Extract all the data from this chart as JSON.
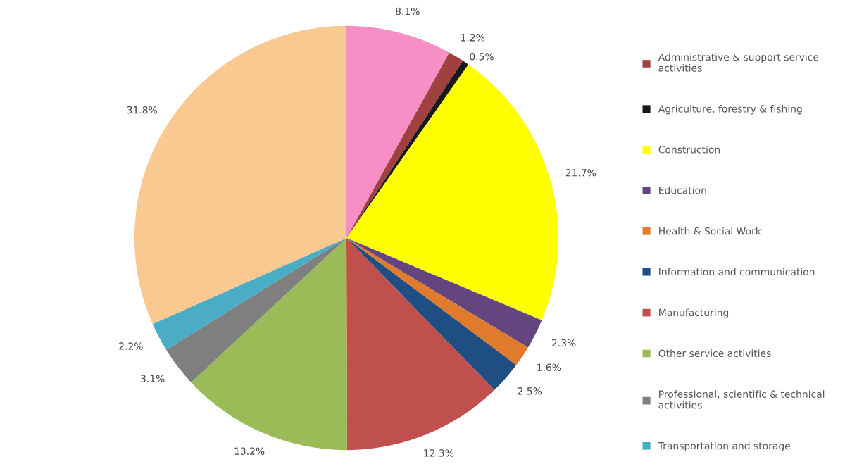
{
  "chart_data": {
    "type": "pie",
    "categories": [
      null,
      "Administrative & support service activities",
      "Agriculture, forestry & fishing",
      "Construction",
      "Education",
      "Health & Social Work",
      "Information and communication",
      "Manufacturing",
      "Other service activities",
      "Professional, scientific & technical activities",
      "Transportation and storage",
      null
    ],
    "values": [
      8.1,
      1.2,
      0.5,
      21.7,
      2.3,
      1.6,
      2.5,
      12.3,
      13.2,
      3.1,
      2.2,
      31.8
    ],
    "colors": [
      "#f78fc6",
      "#a0413f",
      "#1a1a1a",
      "#ffff00",
      "#65457f",
      "#e07b2d",
      "#1f4e83",
      "#c0504d",
      "#9bbb59",
      "#7f7f7f",
      "#4bacc6",
      "#fac891"
    ],
    "value_labels": [
      "8.1%",
      "1.2%",
      "0.5%",
      "21.7%",
      "2.3%",
      "1.6%",
      "2.5%",
      "12.3%",
      "13.2%",
      "3.1%",
      "2.2%",
      "31.8%"
    ],
    "legend": "right"
  }
}
